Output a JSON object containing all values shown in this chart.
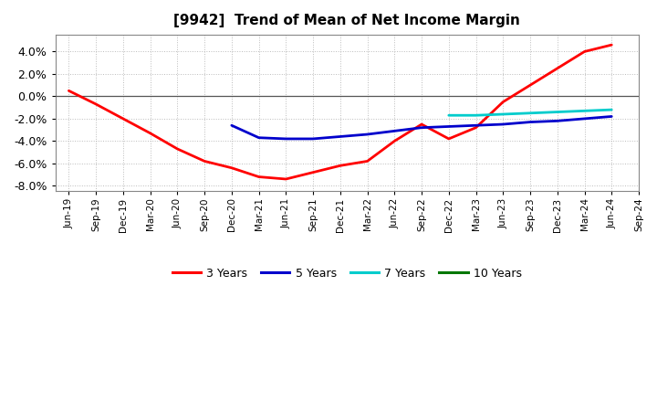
{
  "title": "[9942]  Trend of Mean of Net Income Margin",
  "ylim": [
    -0.085,
    0.055
  ],
  "yticks": [
    -0.08,
    -0.06,
    -0.04,
    -0.02,
    0.0,
    0.02,
    0.04
  ],
  "background_color": "#ffffff",
  "plot_bg_color": "#ffffff",
  "grid_color": "#aaaaaa",
  "x_labels": [
    "Jun-19",
    "Sep-19",
    "Dec-19",
    "Mar-20",
    "Jun-20",
    "Sep-20",
    "Dec-20",
    "Mar-21",
    "Jun-21",
    "Sep-21",
    "Dec-21",
    "Mar-22",
    "Jun-22",
    "Sep-22",
    "Dec-22",
    "Mar-23",
    "Jun-23",
    "Sep-23",
    "Dec-23",
    "Mar-24",
    "Jun-24",
    "Sep-24"
  ],
  "series": {
    "3 Years": {
      "color": "#ff0000",
      "data_x": [
        0,
        1,
        2,
        3,
        4,
        5,
        6,
        7,
        8,
        9,
        10,
        11,
        12,
        13,
        14,
        15,
        16,
        17,
        18,
        19,
        20
      ],
      "data_y": [
        0.005,
        -0.007,
        -0.02,
        -0.033,
        -0.047,
        -0.058,
        -0.064,
        -0.072,
        -0.074,
        -0.068,
        -0.062,
        -0.058,
        -0.04,
        -0.025,
        -0.038,
        -0.028,
        -0.005,
        0.01,
        0.025,
        0.04,
        0.046
      ]
    },
    "5 Years": {
      "color": "#0000cc",
      "data_x": [
        6,
        7,
        8,
        9,
        10,
        11,
        12,
        13,
        14,
        15,
        16,
        17,
        18,
        19,
        20
      ],
      "data_y": [
        -0.026,
        -0.037,
        -0.038,
        -0.038,
        -0.036,
        -0.034,
        -0.031,
        -0.028,
        -0.027,
        -0.026,
        -0.025,
        -0.023,
        -0.022,
        -0.02,
        -0.018
      ]
    },
    "7 Years": {
      "color": "#00cccc",
      "data_x": [
        14,
        15,
        16,
        17,
        18,
        19,
        20
      ],
      "data_y": [
        -0.017,
        -0.017,
        -0.016,
        -0.015,
        -0.014,
        -0.013,
        -0.012
      ]
    },
    "10 Years": {
      "color": "#007700",
      "data_x": [],
      "data_y": []
    }
  },
  "legend_order": [
    "3 Years",
    "5 Years",
    "7 Years",
    "10 Years"
  ]
}
